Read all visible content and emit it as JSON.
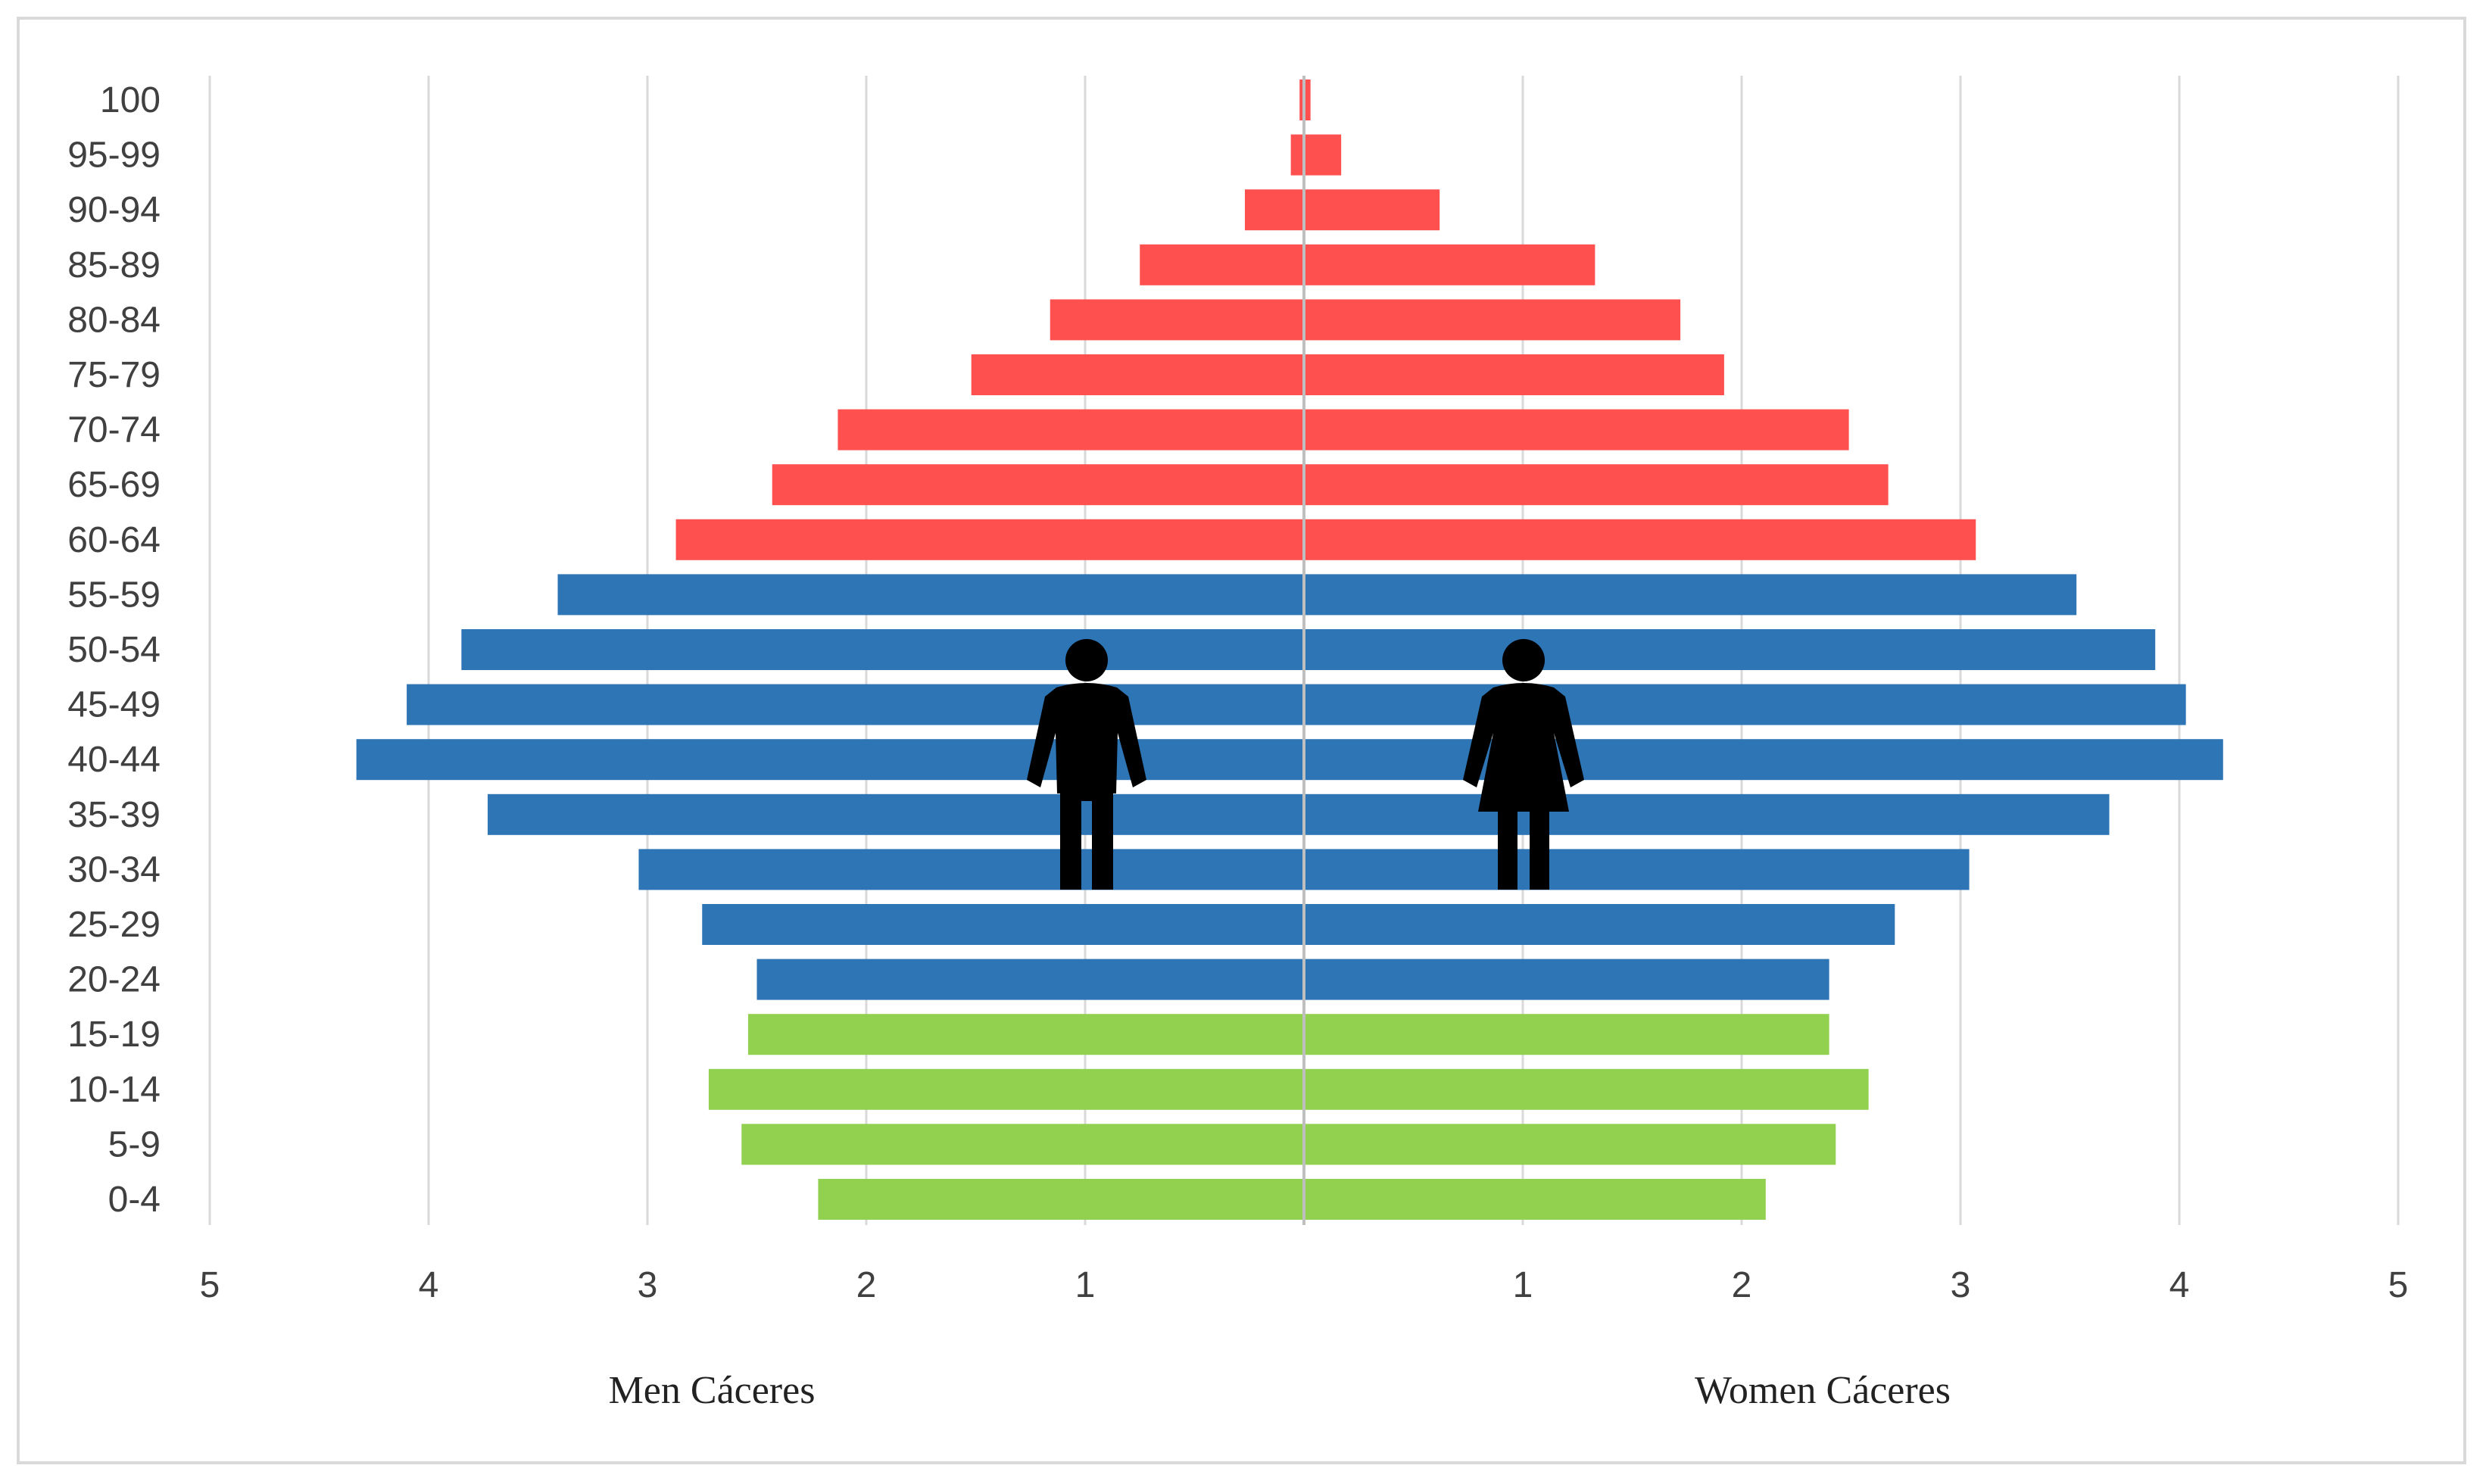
{
  "chart_data": {
    "type": "bar",
    "orientation": "horizontal",
    "layout": "population-pyramid",
    "categories": [
      "100",
      "95-99",
      "90-94",
      "85-89",
      "80-84",
      "75-79",
      "70-74",
      "65-69",
      "60-64",
      "55-59",
      "50-54",
      "45-49",
      "40-44",
      "35-39",
      "30-34",
      "25-29",
      "20-24",
      "15-19",
      "10-14",
      "5-9",
      "0-4"
    ],
    "series": [
      {
        "name": "Men Cáceres",
        "values": [
          0.02,
          0.06,
          0.27,
          0.75,
          1.16,
          1.52,
          2.13,
          2.43,
          2.87,
          3.41,
          3.85,
          4.1,
          4.33,
          3.73,
          3.04,
          2.75,
          2.5,
          2.54,
          2.72,
          2.57,
          2.22
        ]
      },
      {
        "name": "Women Cáceres",
        "values": [
          0.03,
          0.17,
          0.62,
          1.33,
          1.72,
          1.92,
          2.49,
          2.67,
          3.07,
          3.53,
          3.89,
          4.03,
          4.2,
          3.68,
          3.04,
          2.7,
          2.4,
          2.4,
          2.58,
          2.43,
          2.11
        ]
      }
    ],
    "age_groups": {
      "elderly": [
        "100",
        "95-99",
        "90-94",
        "85-89",
        "80-84",
        "75-79",
        "70-74",
        "65-69",
        "60-64"
      ],
      "working": [
        "55-59",
        "50-54",
        "45-49",
        "40-44",
        "35-39",
        "30-34",
        "25-29",
        "20-24"
      ],
      "young": [
        "15-19",
        "10-14",
        "5-9",
        "0-4"
      ]
    },
    "colors": {
      "elderly": "#ff5050",
      "working": "#2e75b6",
      "young": "#92d050",
      "grid": "#d9d9d9",
      "center_line": "#bfbfbf"
    },
    "x_ticks": [
      "5",
      "4",
      "3",
      "2",
      "1",
      "",
      "1",
      "2",
      "3",
      "4",
      "5"
    ],
    "xlim": [
      -5,
      5
    ],
    "icons": [
      "man-icon",
      "woman-icon"
    ],
    "labels": {
      "left": "Men Cáceres",
      "right": "Women Cáceres"
    },
    "grid": true,
    "legend": "none"
  }
}
